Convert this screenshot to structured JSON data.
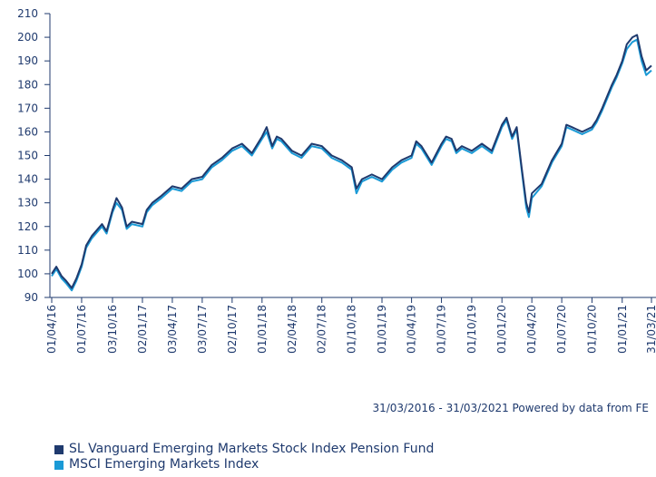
{
  "chart_data": {
    "type": "line",
    "footnote": "31/03/2016 - 31/03/2021 Powered by data from FE",
    "x": [
      "01/04/16",
      "15/04/16",
      "01/05/16",
      "15/05/16",
      "01/06/16",
      "15/06/16",
      "01/07/16",
      "15/07/16",
      "01/08/16",
      "01/09/16",
      "15/09/16",
      "03/10/16",
      "15/10/16",
      "01/11/16",
      "15/11/16",
      "01/12/16",
      "02/01/17",
      "15/01/17",
      "01/02/17",
      "01/03/17",
      "03/04/17",
      "01/05/17",
      "01/06/17",
      "03/07/17",
      "01/08/17",
      "01/09/17",
      "02/10/17",
      "01/11/17",
      "01/12/17",
      "01/01/18",
      "15/01/18",
      "01/02/18",
      "15/02/18",
      "01/03/18",
      "02/04/18",
      "01/05/18",
      "01/06/18",
      "02/07/18",
      "01/08/18",
      "01/09/18",
      "01/10/18",
      "15/10/18",
      "01/11/18",
      "01/12/18",
      "01/01/19",
      "01/02/19",
      "01/03/19",
      "01/04/19",
      "15/04/19",
      "01/05/19",
      "01/06/19",
      "01/07/19",
      "15/07/19",
      "01/08/19",
      "15/08/19",
      "01/09/19",
      "01/10/19",
      "01/11/19",
      "01/12/19",
      "01/01/20",
      "15/01/20",
      "01/02/20",
      "15/02/20",
      "01/03/20",
      "15/03/20",
      "23/03/20",
      "01/04/20",
      "01/05/20",
      "01/06/20",
      "01/07/20",
      "15/07/20",
      "01/08/20",
      "01/09/20",
      "01/10/20",
      "15/10/20",
      "01/11/20",
      "01/12/20",
      "15/12/20",
      "01/01/21",
      "15/01/21",
      "01/02/21",
      "15/02/21",
      "01/03/21",
      "15/03/21",
      "31/03/21"
    ],
    "series": [
      {
        "name": "SL Vanguard Emerging Markets Stock Index Pension Fund",
        "color": "#1f3a6e",
        "values": [
          100,
          103,
          99,
          97,
          94,
          98,
          104,
          112,
          116,
          121,
          118,
          127,
          132,
          128,
          120,
          122,
          121,
          127,
          130,
          133,
          137,
          136,
          140,
          141,
          146,
          149,
          153,
          155,
          151,
          158,
          162,
          154,
          158,
          157,
          152,
          150,
          155,
          154,
          150,
          148,
          145,
          136,
          140,
          142,
          140,
          145,
          148,
          150,
          156,
          154,
          147,
          155,
          158,
          157,
          152,
          154,
          152,
          155,
          152,
          163,
          166,
          158,
          162,
          145,
          130,
          126,
          134,
          138,
          148,
          155,
          163,
          162,
          160,
          162,
          165,
          170,
          180,
          184,
          190,
          197,
          200,
          201,
          192,
          186,
          188
        ]
      },
      {
        "name": "MSCI Emerging Markets Index",
        "color": "#1a9ad6",
        "values": [
          99,
          102,
          98,
          96,
          93,
          97,
          103,
          111,
          115,
          120,
          117,
          126,
          130,
          127,
          119,
          121,
          120,
          126,
          129,
          132,
          136,
          135,
          139,
          140,
          145,
          148,
          152,
          154,
          150,
          157,
          160,
          153,
          157,
          156,
          151,
          149,
          154,
          153,
          149,
          147,
          144,
          134,
          139,
          141,
          139,
          144,
          147,
          149,
          155,
          153,
          146,
          154,
          157,
          156,
          151,
          153,
          151,
          154,
          151,
          162,
          165,
          157,
          161,
          144,
          128,
          124,
          132,
          137,
          147,
          154,
          162,
          161,
          159,
          161,
          164,
          169,
          179,
          183,
          189,
          195,
          198,
          199,
          190,
          184,
          186
        ]
      }
    ],
    "xlim": [
      "01/04/16",
      "31/03/21"
    ],
    "xticks": [
      "01/04/16",
      "01/07/16",
      "03/10/16",
      "02/01/17",
      "03/04/17",
      "03/07/17",
      "02/10/17",
      "01/01/18",
      "02/04/18",
      "02/07/18",
      "01/10/18",
      "01/01/19",
      "01/04/19",
      "01/07/19",
      "01/10/19",
      "01/01/20",
      "01/04/20",
      "01/07/20",
      "01/10/20",
      "01/01/21",
      "31/03/21"
    ],
    "ylim": [
      90,
      210
    ],
    "yticks": [
      90,
      100,
      110,
      120,
      130,
      140,
      150,
      160,
      170,
      180,
      190,
      200,
      210
    ]
  }
}
